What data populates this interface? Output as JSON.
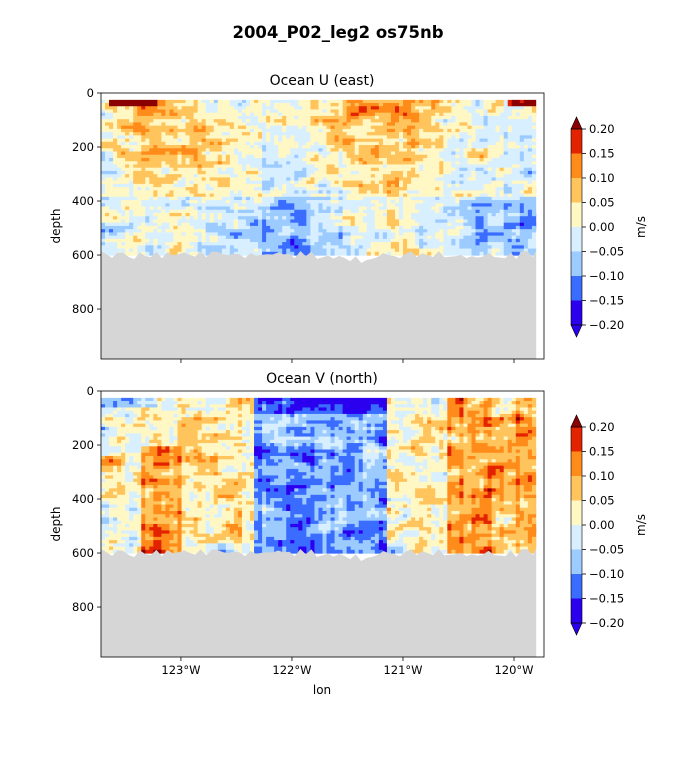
{
  "figure": {
    "title": "2004_P02_leg2 os75nb"
  },
  "chart_data": [
    {
      "type": "heatmap",
      "title": "Ocean U (east)",
      "xlabel": "",
      "ylabel": "depth",
      "xlim": [
        -123.72,
        -119.73
      ],
      "ylim": [
        985,
        0
      ],
      "yticks": [
        "0",
        "200",
        "400",
        "600",
        "800"
      ],
      "ytick_values": [
        0,
        200,
        400,
        600,
        800
      ],
      "xticks": [],
      "xtick_values": [
        -123,
        -122,
        -121,
        -120
      ],
      "colorbar": {
        "label": "m/s",
        "ticks": [
          "0.20",
          "0.15",
          "0.10",
          "0.05",
          "0.00",
          "−0.05",
          "−0.10",
          "−0.15",
          "−0.20"
        ],
        "tick_values": [
          0.2,
          0.15,
          0.1,
          0.05,
          0.0,
          -0.05,
          -0.1,
          -0.15,
          -0.2
        ]
      },
      "data_depth_range": [
        25,
        600
      ],
      "mask_color": "#d6d6d6",
      "pattern": "mostly weak flow: eastward (0.05-0.15) in upper 300 m, strongest (0.2) at surface near 123.4W and 119.9W; weak westward (-0.05 to -0.10) below 400 m"
    },
    {
      "type": "heatmap",
      "title": "Ocean V (north)",
      "xlabel": "lon",
      "ylabel": "depth",
      "xlim": [
        -123.72,
        -119.73
      ],
      "ylim": [
        985,
        0
      ],
      "yticks": [
        "0",
        "200",
        "400",
        "600",
        "800"
      ],
      "ytick_values": [
        0,
        200,
        400,
        600,
        800
      ],
      "xticks": [
        "123°W",
        "122°W",
        "121°W",
        "120°W"
      ],
      "xtick_values": [
        -123,
        -122,
        -121,
        -120
      ],
      "colorbar": {
        "label": "m/s",
        "ticks": [
          "0.20",
          "0.15",
          "0.10",
          "0.05",
          "0.00",
          "−0.05",
          "−0.10",
          "−0.15",
          "−0.20"
        ],
        "tick_values": [
          0.2,
          0.15,
          0.1,
          0.05,
          0.0,
          -0.05,
          -0.1,
          -0.15,
          -0.2
        ]
      },
      "data_depth_range": [
        25,
        600
      ],
      "mask_color": "#d6d6d6",
      "pattern": "southward flow (-0.10 to -0.20) between 122.3W and 121.2W, northward (0.05-0.15) near 123.2W and east of 120.6W"
    }
  ],
  "palette": [
    "#2a00ee",
    "#3a6cff",
    "#9ccbff",
    "#d8efff",
    "#fff7c4",
    "#ffc45c",
    "#ff8c1a",
    "#e32200",
    "#8b0000"
  ]
}
